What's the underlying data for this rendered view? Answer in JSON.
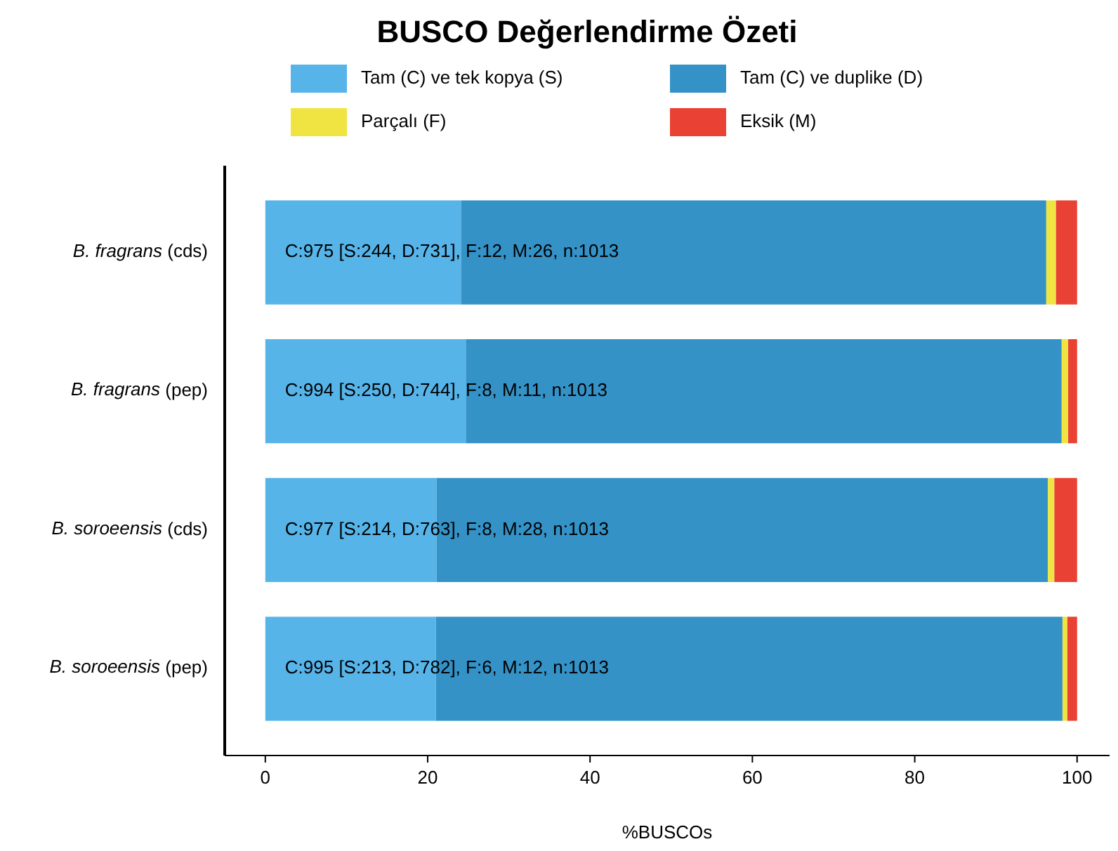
{
  "chart_data": {
    "type": "bar",
    "orientation": "horizontal",
    "stacked": true,
    "title": "BUSCO Değerlendirme Özeti",
    "xlabel": "%BUSCOs",
    "categories": [
      "B. fragrans (cds)",
      "B. fragrans (pep)",
      "B. soroeensis (cds)",
      "B. soroeensis (pep)"
    ],
    "series": [
      {
        "name": "Tam (C) ve tek kopya (S)",
        "color": "#56b4e9",
        "values": [
          24.1,
          24.7,
          21.1,
          21.0
        ]
      },
      {
        "name": "Tam (C) ve duplike (D)",
        "color": "#3492c7",
        "values": [
          72.1,
          73.4,
          75.3,
          77.2
        ]
      },
      {
        "name": "Parçalı (F)",
        "color": "#f0e442",
        "values": [
          1.2,
          0.8,
          0.8,
          0.6
        ]
      },
      {
        "name": "Eksik (M)",
        "color": "#e94234",
        "values": [
          2.6,
          1.1,
          2.8,
          1.2
        ]
      }
    ],
    "annotations": [
      "C:975 [S:244, D:731], F:12, M:26, n:1013",
      "C:994 [S:250, D:744], F:8, M:11, n:1013",
      "C:977 [S:214, D:763], F:8, M:28, n:1013",
      "C:995 [S:213, D:782], F:6, M:12, n:1013"
    ],
    "xlim": [
      -5,
      104
    ],
    "xticks": [
      0,
      20,
      40,
      60,
      80,
      100
    ],
    "grid": false,
    "legend": "top"
  }
}
